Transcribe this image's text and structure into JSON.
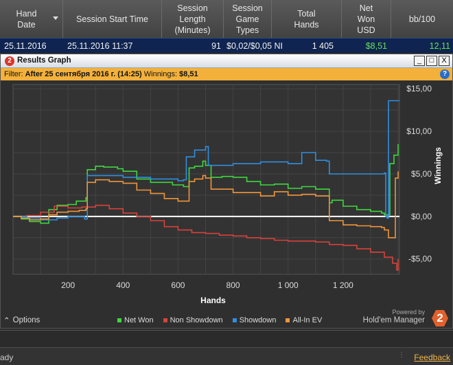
{
  "table": {
    "headers": [
      {
        "label": "Hand\nDate",
        "sort": true
      },
      {
        "label": "Session Start Time"
      },
      {
        "label": "Session\nLength\n(Minutes)"
      },
      {
        "label": "Session\nGame\nTypes"
      },
      {
        "label": "Total\nHands"
      },
      {
        "label": "Net\nWon\nUSD"
      },
      {
        "label": "bb/100"
      }
    ],
    "row": {
      "hand_date": "25.11.2016",
      "start_time": "25.11.2016 11:37",
      "length": "91",
      "game_types": "$0,02/$0,05 NI",
      "total_hands": "1 405",
      "net_won": "$8,51",
      "bb100": "12,11"
    }
  },
  "window": {
    "title": "Results Graph",
    "logo": "2",
    "buttons": [
      "_",
      "□",
      "X"
    ],
    "filter_prefix": "Filter:",
    "filter_value": "After 25 сентября 2016 г. (14:25)",
    "winnings_label": "Winnings:",
    "winnings_value": "$8,51",
    "help": "?"
  },
  "chart_data": {
    "type": "line",
    "xlabel": "Hands",
    "ylabel": "Winnings",
    "xlim": [
      0,
      1405
    ],
    "ylim": [
      -6.8,
      15.5
    ],
    "xticks": [
      200,
      400,
      600,
      800,
      1000,
      1200
    ],
    "xtick_labels": [
      "200",
      "400",
      "600",
      "800",
      "1 000",
      "1 200"
    ],
    "yticks": [
      -5,
      0,
      5,
      10,
      15
    ],
    "ytick_labels": [
      "-$5,00",
      "$0,00",
      "$5,00",
      "$10,00",
      "$15,00"
    ],
    "grid": true,
    "legend": "bottom",
    "series": [
      {
        "name": "Net Won",
        "color": "#3ed83e",
        "x": [
          0,
          30,
          60,
          100,
          130,
          160,
          200,
          230,
          265,
          270,
          300,
          330,
          380,
          400,
          450,
          500,
          540,
          580,
          620,
          640,
          660,
          690,
          700,
          720,
          760,
          800,
          850,
          900,
          950,
          1000,
          1050,
          1100,
          1140,
          1150,
          1160,
          1200,
          1250,
          1300,
          1340,
          1350,
          1370,
          1385,
          1400
        ],
        "y": [
          0,
          -0.3,
          -0.6,
          -0.8,
          0.8,
          1.3,
          1.4,
          1.8,
          2.2,
          5.5,
          5.9,
          5.8,
          5.6,
          5.3,
          4.4,
          4.0,
          4.0,
          3.7,
          3.5,
          5.7,
          5.9,
          6.5,
          6.0,
          4.6,
          4.7,
          4.6,
          4.1,
          3.7,
          3.8,
          3.3,
          3.5,
          3.2,
          3.2,
          1.6,
          1.9,
          1.2,
          0.8,
          0.6,
          0.4,
          0.2,
          6.2,
          7.2,
          8.5
        ]
      },
      {
        "name": "Non Showdown",
        "color": "#d9423a",
        "x": [
          0,
          50,
          100,
          150,
          200,
          250,
          300,
          350,
          400,
          450,
          500,
          550,
          600,
          650,
          700,
          750,
          800,
          850,
          900,
          950,
          1000,
          1050,
          1100,
          1150,
          1200,
          1250,
          1300,
          1350,
          1380,
          1395,
          1400
        ],
        "y": [
          0,
          0.1,
          0.5,
          1.2,
          1.0,
          1.1,
          1.3,
          0.9,
          0.4,
          0.0,
          -0.5,
          -1.2,
          -1.6,
          -1.9,
          -2.0,
          -2.2,
          -2.3,
          -2.5,
          -2.6,
          -2.8,
          -2.9,
          -2.9,
          -3.0,
          -3.3,
          -3.4,
          -3.8,
          -4.2,
          -4.8,
          -5.5,
          -6.3,
          -5.0
        ]
      },
      {
        "name": "Showdown",
        "color": "#2f8fe0",
        "x": [
          0,
          50,
          100,
          160,
          200,
          260,
          270,
          400,
          500,
          600,
          620,
          630,
          660,
          700,
          710,
          800,
          900,
          1000,
          1050,
          1100,
          1140,
          1150,
          1200,
          1300,
          1350,
          1355,
          1360,
          1365,
          1405
        ],
        "y": [
          0,
          -0.2,
          -0.4,
          -0.2,
          0.0,
          -0.3,
          4.8,
          4.6,
          4.4,
          4.2,
          4.3,
          7.0,
          7.8,
          8.2,
          6.0,
          6.2,
          6.4,
          6.2,
          7.5,
          6.6,
          6.5,
          5.0,
          5.0,
          5.0,
          5.1,
          0.0,
          -0.2,
          13.6,
          13.6
        ]
      },
      {
        "name": "All-In EV",
        "color": "#f0963a",
        "x": [
          0,
          30,
          60,
          100,
          130,
          160,
          200,
          240,
          265,
          270,
          300,
          350,
          400,
          450,
          500,
          550,
          600,
          640,
          660,
          690,
          700,
          720,
          800,
          900,
          950,
          1000,
          1050,
          1100,
          1140,
          1150,
          1200,
          1250,
          1300,
          1340,
          1350,
          1365,
          1390,
          1400
        ],
        "y": [
          0,
          -0.2,
          -0.4,
          -0.3,
          0.2,
          0.5,
          0.6,
          0.7,
          0.9,
          4.0,
          4.3,
          4.1,
          3.9,
          3.1,
          2.7,
          2.1,
          1.8,
          4.1,
          4.4,
          4.8,
          4.5,
          3.2,
          2.8,
          2.4,
          2.9,
          2.5,
          2.6,
          2.4,
          2.4,
          -0.5,
          -1.0,
          -1.1,
          -1.2,
          -1.3,
          -1.6,
          -2.5,
          4.5,
          5.3
        ]
      }
    ]
  },
  "options_label": "Options",
  "powered": {
    "line1": "Powered by",
    "line2": "Hold'em Manager",
    "logo": "2"
  },
  "status": {
    "text": "ady",
    "feedback": "Feedback"
  },
  "colors": {
    "accent": "#f3b13b",
    "selected_row": "#0f2450"
  }
}
